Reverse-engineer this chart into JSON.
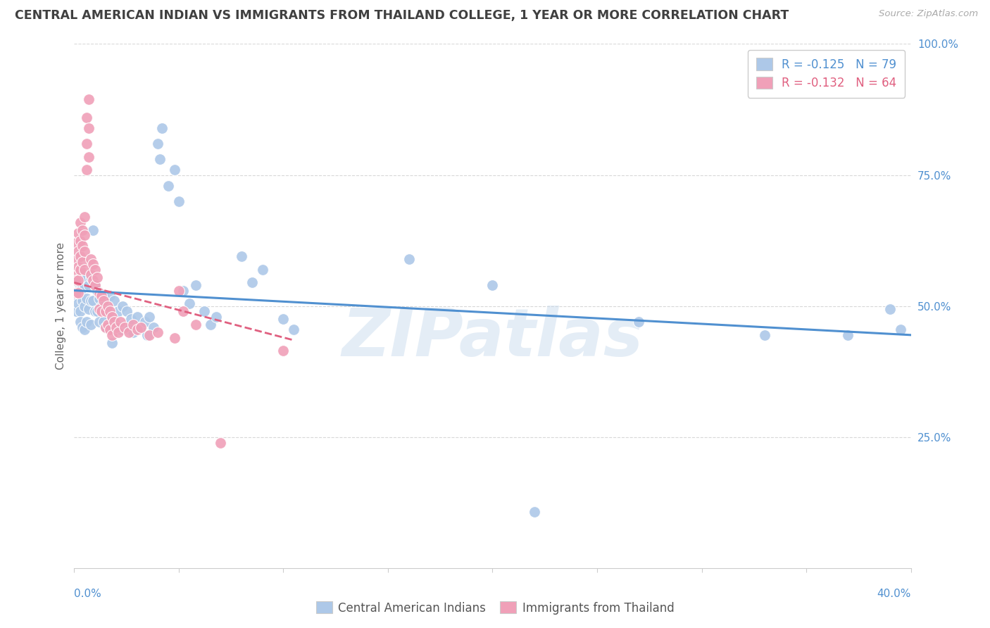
{
  "title": "CENTRAL AMERICAN INDIAN VS IMMIGRANTS FROM THAILAND COLLEGE, 1 YEAR OR MORE CORRELATION CHART",
  "source": "Source: ZipAtlas.com",
  "ylabel": "College, 1 year or more",
  "legend_blue_r": "-0.125",
  "legend_blue_n": "79",
  "legend_pink_r": "-0.132",
  "legend_pink_n": "64",
  "legend_label_blue": "Central American Indians",
  "legend_label_pink": "Immigrants from Thailand",
  "watermark": "ZIPatlas",
  "blue_color": "#adc8e8",
  "pink_color": "#f0a0b8",
  "blue_line_color": "#5090d0",
  "pink_line_color": "#e06080",
  "background_color": "#ffffff",
  "grid_color": "#d8d8d8",
  "title_color": "#404040",
  "axis_label_color": "#5090d0",
  "blue_scatter": [
    [
      0.001,
      0.52
    ],
    [
      0.001,
      0.49
    ],
    [
      0.002,
      0.545
    ],
    [
      0.002,
      0.505
    ],
    [
      0.003,
      0.53
    ],
    [
      0.003,
      0.49
    ],
    [
      0.003,
      0.47
    ],
    [
      0.004,
      0.56
    ],
    [
      0.004,
      0.51
    ],
    [
      0.004,
      0.46
    ],
    [
      0.005,
      0.54
    ],
    [
      0.005,
      0.5
    ],
    [
      0.005,
      0.455
    ],
    [
      0.006,
      0.555
    ],
    [
      0.006,
      0.515
    ],
    [
      0.006,
      0.47
    ],
    [
      0.007,
      0.54
    ],
    [
      0.007,
      0.495
    ],
    [
      0.008,
      0.555
    ],
    [
      0.008,
      0.51
    ],
    [
      0.008,
      0.465
    ],
    [
      0.009,
      0.645
    ],
    [
      0.009,
      0.51
    ],
    [
      0.01,
      0.54
    ],
    [
      0.01,
      0.49
    ],
    [
      0.011,
      0.53
    ],
    [
      0.011,
      0.49
    ],
    [
      0.012,
      0.515
    ],
    [
      0.012,
      0.47
    ],
    [
      0.013,
      0.5
    ],
    [
      0.014,
      0.52
    ],
    [
      0.014,
      0.47
    ],
    [
      0.015,
      0.51
    ],
    [
      0.015,
      0.46
    ],
    [
      0.016,
      0.49
    ],
    [
      0.017,
      0.52
    ],
    [
      0.018,
      0.48
    ],
    [
      0.018,
      0.43
    ],
    [
      0.019,
      0.51
    ],
    [
      0.02,
      0.465
    ],
    [
      0.021,
      0.49
    ],
    [
      0.022,
      0.455
    ],
    [
      0.023,
      0.5
    ],
    [
      0.024,
      0.46
    ],
    [
      0.025,
      0.49
    ],
    [
      0.026,
      0.455
    ],
    [
      0.027,
      0.475
    ],
    [
      0.028,
      0.45
    ],
    [
      0.03,
      0.48
    ],
    [
      0.032,
      0.46
    ],
    [
      0.034,
      0.47
    ],
    [
      0.035,
      0.445
    ],
    [
      0.036,
      0.48
    ],
    [
      0.038,
      0.46
    ],
    [
      0.04,
      0.81
    ],
    [
      0.041,
      0.78
    ],
    [
      0.042,
      0.84
    ],
    [
      0.045,
      0.73
    ],
    [
      0.048,
      0.76
    ],
    [
      0.05,
      0.7
    ],
    [
      0.052,
      0.53
    ],
    [
      0.055,
      0.505
    ],
    [
      0.058,
      0.54
    ],
    [
      0.062,
      0.49
    ],
    [
      0.065,
      0.465
    ],
    [
      0.068,
      0.48
    ],
    [
      0.08,
      0.595
    ],
    [
      0.085,
      0.545
    ],
    [
      0.09,
      0.57
    ],
    [
      0.1,
      0.475
    ],
    [
      0.105,
      0.455
    ],
    [
      0.16,
      0.59
    ],
    [
      0.2,
      0.54
    ],
    [
      0.22,
      0.108
    ],
    [
      0.27,
      0.47
    ],
    [
      0.33,
      0.445
    ],
    [
      0.37,
      0.445
    ],
    [
      0.39,
      0.495
    ],
    [
      0.395,
      0.455
    ]
  ],
  "pink_scatter": [
    [
      0.001,
      0.62
    ],
    [
      0.001,
      0.59
    ],
    [
      0.001,
      0.565
    ],
    [
      0.001,
      0.55
    ],
    [
      0.001,
      0.525
    ],
    [
      0.002,
      0.64
    ],
    [
      0.002,
      0.605
    ],
    [
      0.002,
      0.575
    ],
    [
      0.002,
      0.55
    ],
    [
      0.002,
      0.525
    ],
    [
      0.003,
      0.66
    ],
    [
      0.003,
      0.625
    ],
    [
      0.003,
      0.595
    ],
    [
      0.003,
      0.57
    ],
    [
      0.004,
      0.645
    ],
    [
      0.004,
      0.615
    ],
    [
      0.004,
      0.585
    ],
    [
      0.005,
      0.67
    ],
    [
      0.005,
      0.635
    ],
    [
      0.005,
      0.605
    ],
    [
      0.005,
      0.57
    ],
    [
      0.006,
      0.86
    ],
    [
      0.006,
      0.81
    ],
    [
      0.006,
      0.76
    ],
    [
      0.007,
      0.895
    ],
    [
      0.007,
      0.84
    ],
    [
      0.007,
      0.785
    ],
    [
      0.008,
      0.59
    ],
    [
      0.008,
      0.56
    ],
    [
      0.009,
      0.58
    ],
    [
      0.009,
      0.55
    ],
    [
      0.01,
      0.57
    ],
    [
      0.01,
      0.54
    ],
    [
      0.011,
      0.555
    ],
    [
      0.012,
      0.525
    ],
    [
      0.012,
      0.495
    ],
    [
      0.013,
      0.52
    ],
    [
      0.013,
      0.49
    ],
    [
      0.014,
      0.51
    ],
    [
      0.015,
      0.49
    ],
    [
      0.015,
      0.46
    ],
    [
      0.016,
      0.5
    ],
    [
      0.016,
      0.465
    ],
    [
      0.017,
      0.49
    ],
    [
      0.017,
      0.455
    ],
    [
      0.018,
      0.48
    ],
    [
      0.018,
      0.445
    ],
    [
      0.019,
      0.47
    ],
    [
      0.02,
      0.46
    ],
    [
      0.021,
      0.45
    ],
    [
      0.022,
      0.47
    ],
    [
      0.024,
      0.46
    ],
    [
      0.026,
      0.45
    ],
    [
      0.028,
      0.465
    ],
    [
      0.03,
      0.455
    ],
    [
      0.032,
      0.46
    ],
    [
      0.036,
      0.445
    ],
    [
      0.04,
      0.45
    ],
    [
      0.048,
      0.44
    ],
    [
      0.05,
      0.53
    ],
    [
      0.052,
      0.49
    ],
    [
      0.058,
      0.465
    ],
    [
      0.07,
      0.24
    ],
    [
      0.1,
      0.415
    ]
  ],
  "xlim": [
    0.0,
    0.4
  ],
  "ylim": [
    0.0,
    1.0
  ],
  "blue_trendline_x": [
    0.0,
    0.4
  ],
  "blue_trendline_y": [
    0.53,
    0.445
  ],
  "pink_trendline_x": [
    0.0,
    0.105
  ],
  "pink_trendline_y": [
    0.545,
    0.435
  ]
}
